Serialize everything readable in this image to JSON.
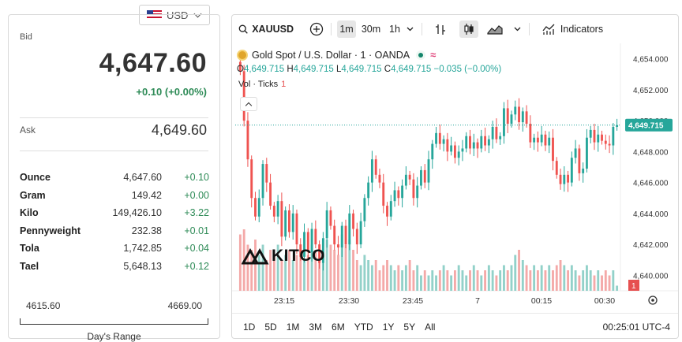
{
  "currency": {
    "label": "USD"
  },
  "quote": {
    "bid_label": "Bid",
    "bid": "4,647.60",
    "change": "+0.10 (+0.00%)",
    "ask_label": "Ask",
    "ask": "4,649.60"
  },
  "units": [
    {
      "name": "Ounce",
      "price": "4,647.60",
      "change": "+0.10"
    },
    {
      "name": "Gram",
      "price": "149.42",
      "change": "+0.00"
    },
    {
      "name": "Kilo",
      "price": "149,426.10",
      "change": "+3.22"
    },
    {
      "name": "Pennyweight",
      "price": "232.38",
      "change": "+0.01"
    },
    {
      "name": "Tola",
      "price": "1,742.85",
      "change": "+0.04"
    },
    {
      "name": "Tael",
      "price": "5,648.13",
      "change": "+0.12"
    }
  ],
  "day_range": {
    "low": "4615.60",
    "high": "4669.00",
    "title": "Day's Range"
  },
  "toolbar": {
    "symbol": "XAUUSD",
    "intervals": [
      "1m",
      "30m",
      "1h"
    ],
    "active_interval": "1m",
    "indicators_label": "Indicators"
  },
  "legend": {
    "title": "Gold Spot / U.S. Dollar · 1 · OANDA",
    "o_key": "O",
    "o": "4,649.715",
    "h_key": "H",
    "h": "4,649.715",
    "l_key": "L",
    "l": "4,649.715",
    "c_key": "C",
    "c": "4,649.715",
    "chg": "−0.035 (−0.00%)",
    "vol_label": "Vol · Ticks",
    "vol_value": "1",
    "approx_symbol": "≈"
  },
  "watermark": "KITCO",
  "chart_data": {
    "type": "candlestick",
    "y_ticks": [
      "4,654.000",
      "4,652.000",
      "4,650.000",
      "4,648.000",
      "4,646.000",
      "4,644.000",
      "4,642.000",
      "4,640.000"
    ],
    "y_range": [
      4639,
      4655
    ],
    "x_ticks": [
      "23:15",
      "23:30",
      "23:45",
      "7",
      "00:15",
      "00:30"
    ],
    "last_price": "4,649.715",
    "last_price_value": 4649.715,
    "volume_last": "1",
    "colors": {
      "up": "#26a69a",
      "down": "#ef5350",
      "up_vol": "#92d1c9",
      "down_vol": "#f4a9a8"
    },
    "closes": [
      4653.2,
      4650.0,
      4647.5,
      4645.0,
      4643.8,
      4645.0,
      4647.2,
      4646.0,
      4644.5,
      4643.8,
      4644.8,
      4642.5,
      4644.2,
      4642.8,
      4644.0,
      4642.0,
      4641.2,
      4642.8,
      4641.5,
      4643.0,
      4642.0,
      4640.8,
      4642.4,
      4644.2,
      4643.2,
      4642.0,
      4641.8,
      4643.2,
      4642.0,
      4644.0,
      4643.0,
      4642.0,
      4643.5,
      4645.0,
      4646.0,
      4647.5,
      4646.5,
      4646.0,
      4644.5,
      4643.8,
      4644.8,
      4645.5,
      4645.0,
      4645.8,
      4646.5,
      4646.2,
      4645.0,
      4645.8,
      4646.8,
      4646.0,
      4647.5,
      4648.5,
      4649.2,
      4648.5,
      4648.8,
      4648.0,
      4648.4,
      4647.6,
      4648.0,
      4648.2,
      4649.0,
      4648.2,
      4648.6,
      4648.2,
      4649.0,
      4648.4,
      4648.8,
      4649.6,
      4648.8,
      4649.0,
      4650.8,
      4649.8,
      4650.4,
      4650.9,
      4649.9,
      4650.6,
      4649.8,
      4648.6,
      4648.9,
      4648.6,
      4649.1,
      4648.4,
      4648.9,
      4647.4,
      4646.5,
      4645.9,
      4646.5,
      4646.0,
      4647.6,
      4648.2,
      4646.6,
      4646.9,
      4648.9,
      4649.4,
      4648.6,
      4649.1,
      4648.7,
      4648.5,
      4648.4,
      4649.6,
      4649.715
    ],
    "volumes": [
      11,
      12,
      9,
      8,
      10,
      7,
      9,
      6,
      8,
      7,
      9,
      6,
      7,
      8,
      6,
      7,
      8,
      6,
      7,
      9,
      8,
      6,
      7,
      10,
      9,
      8,
      7,
      11,
      9,
      10,
      8,
      6,
      5,
      7,
      6,
      5,
      6,
      4,
      5,
      6,
      5,
      4,
      5,
      4,
      5,
      6,
      4,
      5,
      3,
      4,
      3,
      4,
      3,
      4,
      5,
      4,
      3,
      4,
      5,
      4,
      3,
      4,
      5,
      4,
      3,
      4,
      5,
      4,
      3,
      4,
      5,
      4,
      5,
      7,
      8,
      6,
      5,
      4,
      5,
      4,
      5,
      4,
      5,
      4,
      5,
      6,
      5,
      4,
      5,
      4,
      3,
      4,
      5,
      4,
      3,
      4,
      3,
      4,
      3,
      4,
      1
    ]
  },
  "range_buttons": [
    "1D",
    "5D",
    "1M",
    "3M",
    "6M",
    "YTD",
    "1Y",
    "5Y",
    "All"
  ],
  "clock": "00:25:01 UTC-4"
}
